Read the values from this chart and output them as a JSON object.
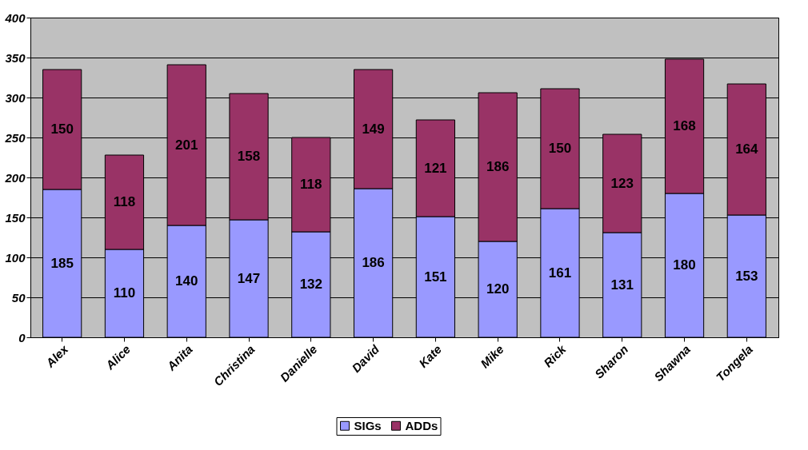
{
  "chart_data": {
    "type": "bar",
    "stacked": true,
    "data_labels": true,
    "grid": "y",
    "legend": "bottom",
    "categories": [
      "Alex",
      "Alice",
      "Anita",
      "Christina",
      "Danielle",
      "David",
      "Kate",
      "Mike",
      "Rick",
      "Sharon",
      "Shawna",
      "Tongela"
    ],
    "series": [
      {
        "name": "SIGs",
        "color": "#9999ff",
        "values": [
          185,
          110,
          140,
          147,
          132,
          186,
          151,
          120,
          161,
          131,
          180,
          153
        ]
      },
      {
        "name": "ADDs",
        "color": "#993366",
        "values": [
          150,
          118,
          201,
          158,
          118,
          149,
          121,
          186,
          150,
          123,
          168,
          164
        ]
      }
    ],
    "ylim": [
      0,
      400
    ],
    "yticks": [
      0,
      50,
      100,
      150,
      200,
      250,
      300,
      350,
      400
    ]
  }
}
